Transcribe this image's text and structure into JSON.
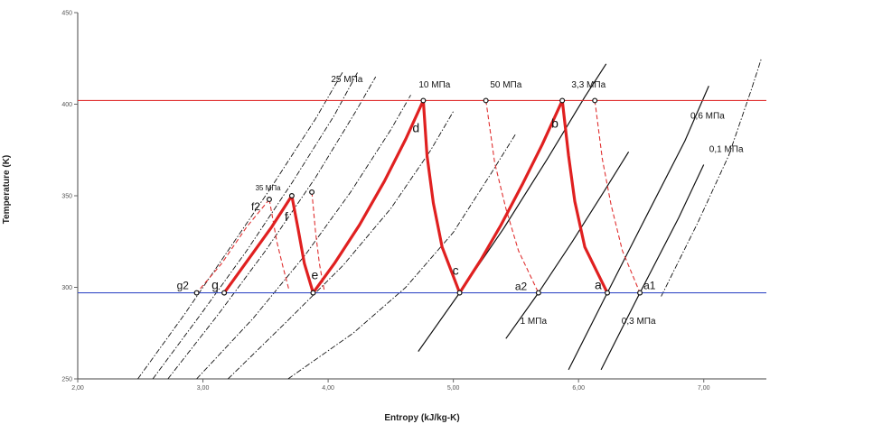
{
  "chart_data": {
    "type": "line",
    "xlabel": "Entropy (kJ/kg-K)",
    "ylabel": "Temperature (K)",
    "xlim": [
      2.0,
      7.5
    ],
    "ylim": [
      250,
      450
    ],
    "x_ticks": [
      "2,00",
      "3,00",
      "4,00",
      "5,00",
      "6,00",
      "7,00"
    ],
    "y_ticks": [
      "250",
      "300",
      "350",
      "400",
      "450"
    ],
    "grid": false,
    "isotherms": [
      {
        "name": "T_high",
        "T": 402,
        "color": "#e03030"
      },
      {
        "name": "T_low",
        "T": 297,
        "color": "#3a50c8"
      }
    ],
    "isobar_labels": [
      {
        "text": "25 МПа",
        "s": 4.15,
        "T": 412
      },
      {
        "text": "10 МПа",
        "s": 4.85,
        "T": 409
      },
      {
        "text": "50 МПа",
        "s": 5.42,
        "T": 409
      },
      {
        "text": "3,3 МПа",
        "s": 6.08,
        "T": 409
      },
      {
        "text": "0,6 МПа",
        "s": 7.03,
        "T": 392
      },
      {
        "text": "0,1 МПа",
        "s": 7.18,
        "T": 374
      },
      {
        "text": "35 МПа",
        "s": 3.52,
        "T": 353
      },
      {
        "text": "1 МПа",
        "s": 5.64,
        "T": 280
      },
      {
        "text": "0,3 МПа",
        "s": 6.48,
        "T": 280
      }
    ],
    "cycle_points": [
      {
        "name": "a",
        "s": 6.23,
        "T": 297
      },
      {
        "name": "b",
        "s": 5.87,
        "T": 402
      },
      {
        "name": "c",
        "s": 5.05,
        "T": 297
      },
      {
        "name": "d",
        "s": 4.76,
        "T": 402
      },
      {
        "name": "e",
        "s": 3.88,
        "T": 297
      },
      {
        "name": "f",
        "s": 3.71,
        "T": 350
      },
      {
        "name": "g",
        "s": 3.17,
        "T": 297
      }
    ],
    "ideal_points": [
      {
        "name": "a1",
        "s": 6.49,
        "T": 297
      },
      {
        "name": "a2",
        "s": 5.68,
        "T": 297
      },
      {
        "name": "f2",
        "s": 3.53,
        "T": 348
      },
      {
        "name": "g2",
        "s": 2.95,
        "T": 297
      }
    ],
    "extra_markers": [
      {
        "s": 5.26,
        "T": 402
      },
      {
        "s": 6.13,
        "T": 402
      },
      {
        "s": 3.87,
        "T": 352
      }
    ],
    "series": [
      {
        "role": "cycle",
        "color": "#e02020",
        "style": "solid",
        "points": [
          [
            3.17,
            297
          ],
          [
            3.35,
            314
          ],
          [
            3.55,
            333
          ],
          [
            3.71,
            350
          ],
          [
            3.76,
            332
          ],
          [
            3.81,
            313
          ],
          [
            3.88,
            297
          ],
          [
            4.05,
            313
          ],
          [
            4.25,
            334
          ],
          [
            4.45,
            358
          ],
          [
            4.62,
            381
          ],
          [
            4.76,
            402
          ],
          [
            4.79,
            372
          ],
          [
            4.84,
            346
          ],
          [
            4.91,
            322
          ],
          [
            5.05,
            297
          ],
          [
            5.22,
            315
          ],
          [
            5.38,
            334
          ],
          [
            5.55,
            356
          ],
          [
            5.71,
            378
          ],
          [
            5.87,
            402
          ],
          [
            5.92,
            372
          ],
          [
            5.97,
            347
          ],
          [
            6.05,
            322
          ],
          [
            6.23,
            297
          ]
        ]
      },
      {
        "role": "ideal",
        "color": "#e03030",
        "style": "dashed",
        "points": [
          [
            5.26,
            402
          ],
          [
            5.33,
            368
          ],
          [
            5.42,
            343
          ],
          [
            5.52,
            320
          ],
          [
            5.68,
            297
          ]
        ]
      },
      {
        "role": "ideal",
        "color": "#e03030",
        "style": "dashed",
        "points": [
          [
            6.13,
            402
          ],
          [
            6.19,
            370
          ],
          [
            6.26,
            345
          ],
          [
            6.35,
            320
          ],
          [
            6.49,
            297
          ]
        ]
      },
      {
        "role": "ideal",
        "color": "#e03030",
        "style": "dashed",
        "points": [
          [
            3.53,
            348
          ],
          [
            3.35,
            333
          ],
          [
            3.15,
            313
          ],
          [
            2.95,
            297
          ]
        ]
      },
      {
        "role": "ideal",
        "color": "#e03030",
        "style": "dashed",
        "points": [
          [
            3.53,
            348
          ],
          [
            3.59,
            325
          ],
          [
            3.64,
            311
          ],
          [
            3.69,
            298
          ]
        ]
      },
      {
        "role": "ideal",
        "color": "#e03030",
        "style": "dashed",
        "points": [
          [
            3.87,
            352
          ],
          [
            3.9,
            330
          ],
          [
            3.93,
            313
          ],
          [
            3.97,
            298
          ]
        ]
      },
      {
        "role": "isobar",
        "color": "#111111",
        "style": "dashdot",
        "points": [
          [
            2.48,
            250
          ],
          [
            2.85,
            285
          ],
          [
            3.2,
            320
          ],
          [
            3.55,
            355
          ],
          [
            3.9,
            392
          ],
          [
            4.12,
            418
          ]
        ]
      },
      {
        "role": "isobar",
        "color": "#111111",
        "style": "dashdot",
        "points": [
          [
            2.6,
            250
          ],
          [
            2.98,
            285
          ],
          [
            3.35,
            320
          ],
          [
            3.72,
            358
          ],
          [
            4.05,
            394
          ],
          [
            4.24,
            418
          ]
        ]
      },
      {
        "role": "isobar",
        "color": "#111111",
        "style": "dashdot",
        "points": [
          [
            2.72,
            250
          ],
          [
            3.12,
            285
          ],
          [
            3.5,
            320
          ],
          [
            3.9,
            360
          ],
          [
            4.22,
            396
          ],
          [
            4.38,
            415
          ]
        ]
      },
      {
        "role": "isobar",
        "color": "#111111",
        "style": "dashdot",
        "points": [
          [
            2.95,
            250
          ],
          [
            3.4,
            283
          ],
          [
            3.82,
            318
          ],
          [
            4.18,
            352
          ],
          [
            4.5,
            386
          ],
          [
            4.66,
            405
          ]
        ]
      },
      {
        "role": "isobar",
        "color": "#111111",
        "style": "dashdot",
        "points": [
          [
            3.2,
            250
          ],
          [
            3.65,
            280
          ],
          [
            4.12,
            312
          ],
          [
            4.5,
            343
          ],
          [
            4.82,
            375
          ],
          [
            5.0,
            396
          ]
        ]
      },
      {
        "role": "isobar",
        "color": "#111111",
        "style": "dashdot",
        "points": [
          [
            3.68,
            250
          ],
          [
            4.2,
            275
          ],
          [
            4.62,
            300
          ],
          [
            5.0,
            330
          ],
          [
            5.3,
            362
          ],
          [
            5.5,
            384
          ]
        ]
      },
      {
        "role": "isobar",
        "color": "#111111",
        "style": "solid",
        "points": [
          [
            4.72,
            265
          ],
          [
            5.05,
            297
          ],
          [
            5.4,
            332
          ],
          [
            5.75,
            370
          ],
          [
            6.05,
            404
          ],
          [
            6.22,
            422
          ]
        ]
      },
      {
        "role": "isobar",
        "color": "#111111",
        "style": "solid",
        "points": [
          [
            5.42,
            272
          ],
          [
            5.68,
            297
          ],
          [
            5.95,
            325
          ],
          [
            6.2,
            352
          ],
          [
            6.4,
            374
          ]
        ]
      },
      {
        "role": "isobar",
        "color": "#111111",
        "style": "solid",
        "points": [
          [
            5.92,
            255
          ],
          [
            6.23,
            297
          ],
          [
            6.55,
            340
          ],
          [
            6.85,
            380
          ],
          [
            7.04,
            410
          ]
        ]
      },
      {
        "role": "isobar",
        "color": "#111111",
        "style": "solid",
        "points": [
          [
            6.18,
            255
          ],
          [
            6.49,
            297
          ],
          [
            6.8,
            338
          ],
          [
            7.0,
            367
          ]
        ]
      },
      {
        "role": "isobar",
        "color": "#111111",
        "style": "dashdot",
        "points": [
          [
            6.66,
            295
          ],
          [
            6.95,
            335
          ],
          [
            7.2,
            372
          ],
          [
            7.38,
            408
          ],
          [
            7.46,
            425
          ]
        ]
      }
    ]
  }
}
